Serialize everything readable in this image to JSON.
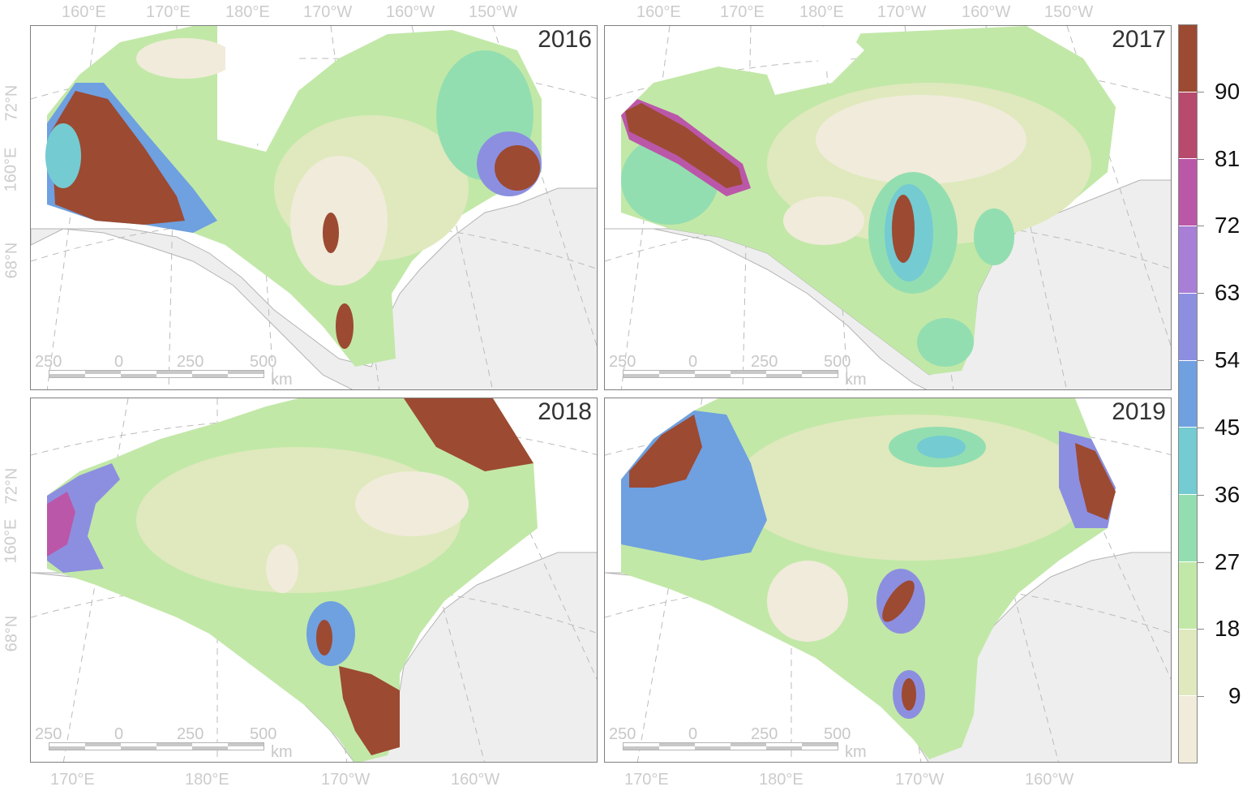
{
  "figure": {
    "panels": [
      {
        "id": "2016",
        "year": "2016"
      },
      {
        "id": "2017",
        "year": "2017"
      },
      {
        "id": "2018",
        "year": "2018"
      },
      {
        "id": "2019",
        "year": "2019"
      }
    ],
    "top_lon_labels": [
      "160°E",
      "170°E",
      "180°E",
      "170°W",
      "160°W",
      "150°W"
    ],
    "bottom_lon_labels": [
      "170°E",
      "180°E",
      "170°W",
      "160°W"
    ],
    "lat_labels": [
      "72°N",
      "160°E",
      "68°N"
    ],
    "scale_bar": {
      "labels": [
        "250",
        "0",
        "250",
        "500"
      ],
      "unit": "km"
    },
    "colors": {
      "land": "#eeeeee",
      "coast": "#b4b4b4",
      "graticule": "#bbbbbb",
      "sea_none": "#ffffff"
    }
  },
  "colorbar": {
    "labels": [
      "90",
      "81",
      "72",
      "63",
      "54",
      "45",
      "36",
      "27",
      "18",
      "9"
    ],
    "palette": [
      "#9c4a32",
      "#b84a6e",
      "#bb57a8",
      "#a87fd6",
      "#8c8fe0",
      "#6fa0e0",
      "#74cbd1",
      "#93deb0",
      "#c2e8a8",
      "#dfe9bd",
      "#f1ebdb"
    ]
  }
}
